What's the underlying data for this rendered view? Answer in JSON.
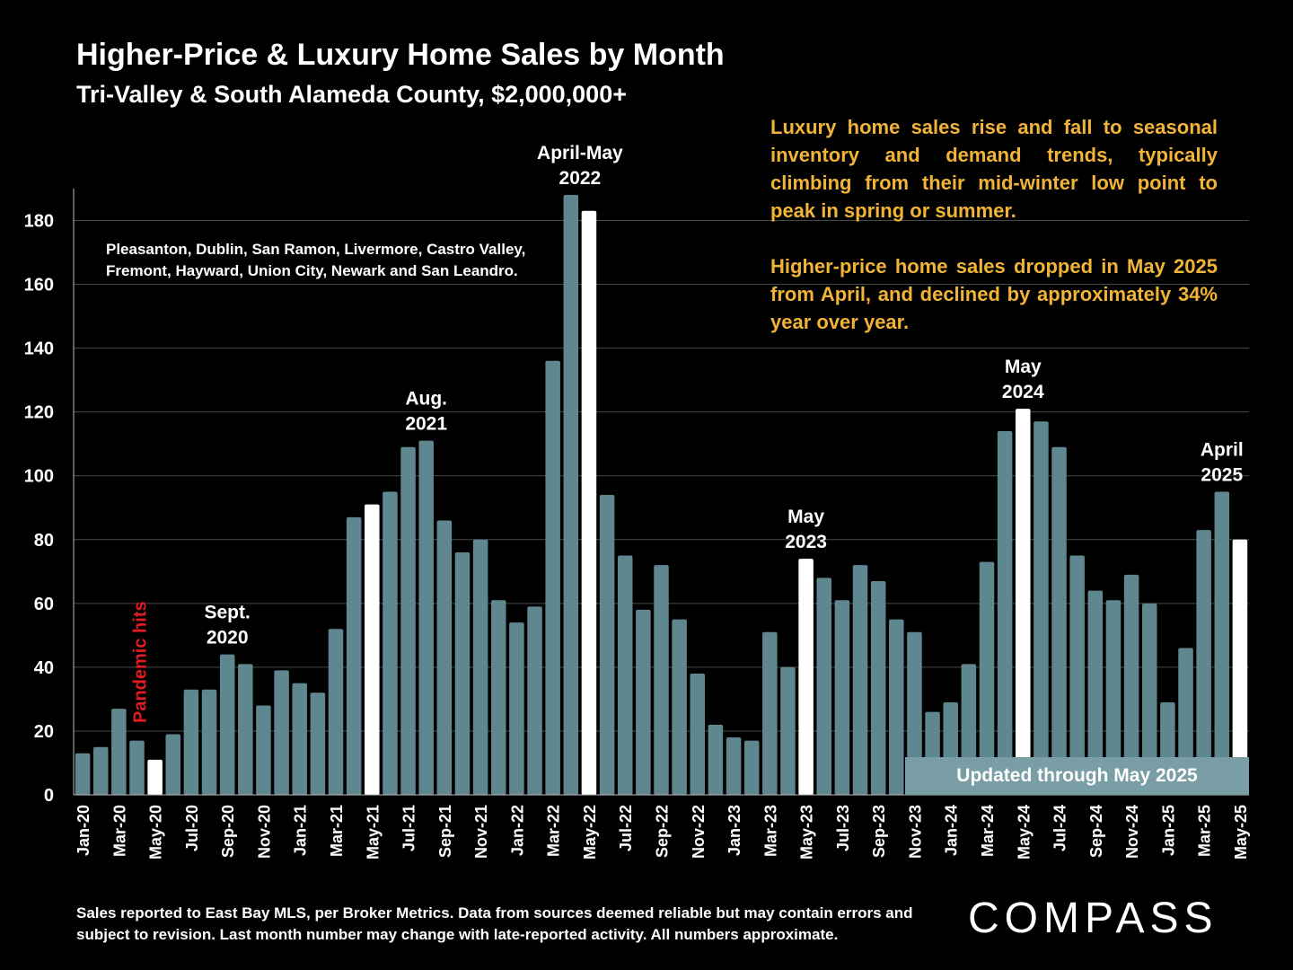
{
  "header": {
    "title": "Higher-Price & Luxury Home Sales by Month",
    "subtitle": "Tri-Valley & South Alameda County, $2,000,000+"
  },
  "cities_note": "Pleasanton, Dublin, San Ramon, Livermore, Castro Valley, Fremont, Hayward, Union City, Newark and San Leandro.",
  "commentary": {
    "paragraph1": "Luxury home sales rise and fall to seasonal inventory and demand trends, typically climbing from their mid-winter low point to peak in spring or summer.",
    "paragraph2": "Higher-price home sales dropped in May 2025 from April, and declined by approximately 34% year over year."
  },
  "updated_label": "Updated through May 2025",
  "footer_note": "Sales reported to East Bay MLS, per Broker Metrics. Data from sources deemed reliable but may contain errors and subject to revision. Last month number may change with late-reported activity. All numbers approximate.",
  "logo_text": "COMPASS",
  "colors": {
    "bar": "#5f8790",
    "highlight_bar": "#ffffff",
    "annotation_red": "#e31b23",
    "commentary": "#f2b436",
    "background": "#000000",
    "updated_box": "#7a9ea6"
  },
  "chart_data": {
    "type": "bar",
    "categories": [
      "Jan-20",
      "Feb-20",
      "Mar-20",
      "Apr-20",
      "May-20",
      "Jun-20",
      "Jul-20",
      "Aug-20",
      "Sep-20",
      "Oct-20",
      "Nov-20",
      "Dec-20",
      "Jan-21",
      "Feb-21",
      "Mar-21",
      "Apr-21",
      "May-21",
      "Jun-21",
      "Jul-21",
      "Aug-21",
      "Sep-21",
      "Oct-21",
      "Nov-21",
      "Dec-21",
      "Jan-22",
      "Feb-22",
      "Mar-22",
      "Apr-22",
      "May-22",
      "Jun-22",
      "Jul-22",
      "Aug-22",
      "Sep-22",
      "Oct-22",
      "Nov-22",
      "Dec-22",
      "Jan-23",
      "Feb-23",
      "Mar-23",
      "Apr-23",
      "May-23",
      "Jun-23",
      "Jul-23",
      "Aug-23",
      "Sep-23",
      "Oct-23",
      "Nov-23",
      "Dec-23",
      "Jan-24",
      "Feb-24",
      "Mar-24",
      "Apr-24",
      "May-24",
      "Jun-24",
      "Jul-24",
      "Aug-24",
      "Sep-24",
      "Oct-24",
      "Nov-24",
      "Dec-24",
      "Jan-25",
      "Feb-25",
      "Mar-25",
      "Apr-25",
      "May-25"
    ],
    "tick_labels": [
      "Jan-20",
      "Mar-20",
      "May-20",
      "Jul-20",
      "Sep-20",
      "Nov-20",
      "Jan-21",
      "Mar-21",
      "May-21",
      "Jul-21",
      "Sep-21",
      "Nov-21",
      "Jan-22",
      "Mar-22",
      "May-22",
      "Jul-22",
      "Sep-22",
      "Nov-22",
      "Jan-23",
      "Mar-23",
      "May-23",
      "Jul-23",
      "Sep-23",
      "Nov-23",
      "Jan-24",
      "Mar-24",
      "May-24",
      "Jul-24",
      "Sep-24",
      "Nov-24",
      "Jan-25",
      "Mar-25",
      "May-25"
    ],
    "values": [
      13,
      15,
      27,
      17,
      11,
      19,
      33,
      33,
      44,
      41,
      28,
      39,
      35,
      32,
      52,
      87,
      91,
      95,
      109,
      111,
      86,
      76,
      80,
      61,
      54,
      59,
      136,
      188,
      183,
      94,
      75,
      58,
      72,
      55,
      38,
      22,
      18,
      17,
      51,
      40,
      74,
      68,
      61,
      72,
      67,
      55,
      51,
      26,
      29,
      41,
      73,
      114,
      121,
      117,
      109,
      75,
      64,
      61,
      69,
      60,
      29,
      46,
      83,
      95,
      80
    ],
    "highlighted": [
      "May-20",
      "May-21",
      "May-22",
      "May-23",
      "May-24",
      "May-25"
    ],
    "ylim": [
      0,
      190
    ],
    "yticks": [
      0,
      20,
      40,
      60,
      80,
      100,
      120,
      140,
      160,
      180
    ],
    "grid": true,
    "annotations": [
      {
        "category": "Sep-20",
        "lines": [
          "Sept.",
          "2020"
        ]
      },
      {
        "category": "Aug-21",
        "lines": [
          "Aug.",
          "2021"
        ]
      },
      {
        "category": "Apr-22",
        "lines": [
          "April-May",
          "2022"
        ]
      },
      {
        "category": "May-23",
        "lines": [
          "May",
          "2023"
        ]
      },
      {
        "category": "May-24",
        "lines": [
          "May",
          "2024"
        ]
      },
      {
        "category": "Apr-25",
        "lines": [
          "April",
          "2025"
        ]
      }
    ],
    "event_annotation": {
      "category": "Apr-20",
      "text": "Pandemic hits"
    }
  }
}
